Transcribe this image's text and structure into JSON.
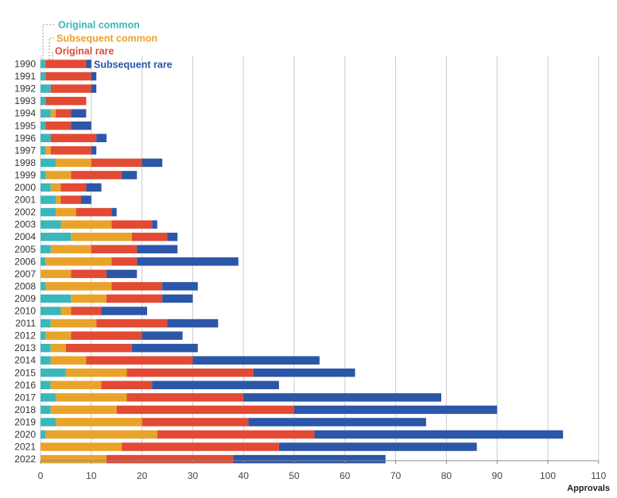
{
  "chart_data": {
    "type": "bar",
    "orientation": "horizontal",
    "stacked": true,
    "title": "",
    "xlabel": "Approvals",
    "ylabel": "",
    "xlim": [
      0,
      110
    ],
    "xticks": [
      0,
      10,
      20,
      30,
      40,
      50,
      60,
      70,
      80,
      90,
      100,
      110
    ],
    "grid": true,
    "legend_position": "top-left",
    "categories": [
      "1990",
      "1991",
      "1992",
      "1993",
      "1994",
      "1995",
      "1996",
      "1997",
      "1998",
      "1999",
      "2000",
      "2001",
      "2002",
      "2003",
      "2004",
      "2005",
      "2006",
      "2007",
      "2008",
      "2009",
      "2010",
      "2011",
      "2012",
      "2013",
      "2014",
      "2015",
      "2016",
      "2017",
      "2018",
      "2019",
      "2020",
      "2021",
      "2022"
    ],
    "series": [
      {
        "name": "Original common",
        "color": "#3ab7bd",
        "values": [
          1,
          1,
          2,
          1,
          2,
          1,
          2,
          1,
          3,
          1,
          2,
          3,
          3,
          4,
          6,
          2,
          1,
          0,
          1,
          6,
          4,
          2,
          1,
          2,
          2,
          5,
          2,
          3,
          2,
          3,
          1,
          0,
          0
        ]
      },
      {
        "name": "Subsequent common",
        "color": "#e9a32a",
        "values": [
          0,
          0,
          0,
          0,
          1,
          0,
          0,
          1,
          7,
          5,
          2,
          1,
          4,
          10,
          12,
          8,
          13,
          6,
          13,
          7,
          2,
          9,
          5,
          3,
          7,
          12,
          10,
          14,
          13,
          17,
          22,
          16,
          13
        ]
      },
      {
        "name": "Original rare",
        "color": "#e24a33",
        "values": [
          8,
          9,
          8,
          8,
          3,
          5,
          9,
          8,
          10,
          10,
          5,
          4,
          7,
          8,
          7,
          9,
          5,
          7,
          10,
          11,
          6,
          14,
          14,
          13,
          21,
          25,
          10,
          23,
          35,
          21,
          31,
          31,
          25
        ]
      },
      {
        "name": "Subsequent rare",
        "color": "#2c56a7",
        "values": [
          1,
          1,
          1,
          0,
          3,
          4,
          2,
          1,
          4,
          3,
          3,
          2,
          1,
          1,
          2,
          8,
          20,
          6,
          7,
          6,
          9,
          10,
          8,
          13,
          25,
          20,
          25,
          39,
          40,
          35,
          49,
          39,
          30
        ]
      }
    ]
  }
}
